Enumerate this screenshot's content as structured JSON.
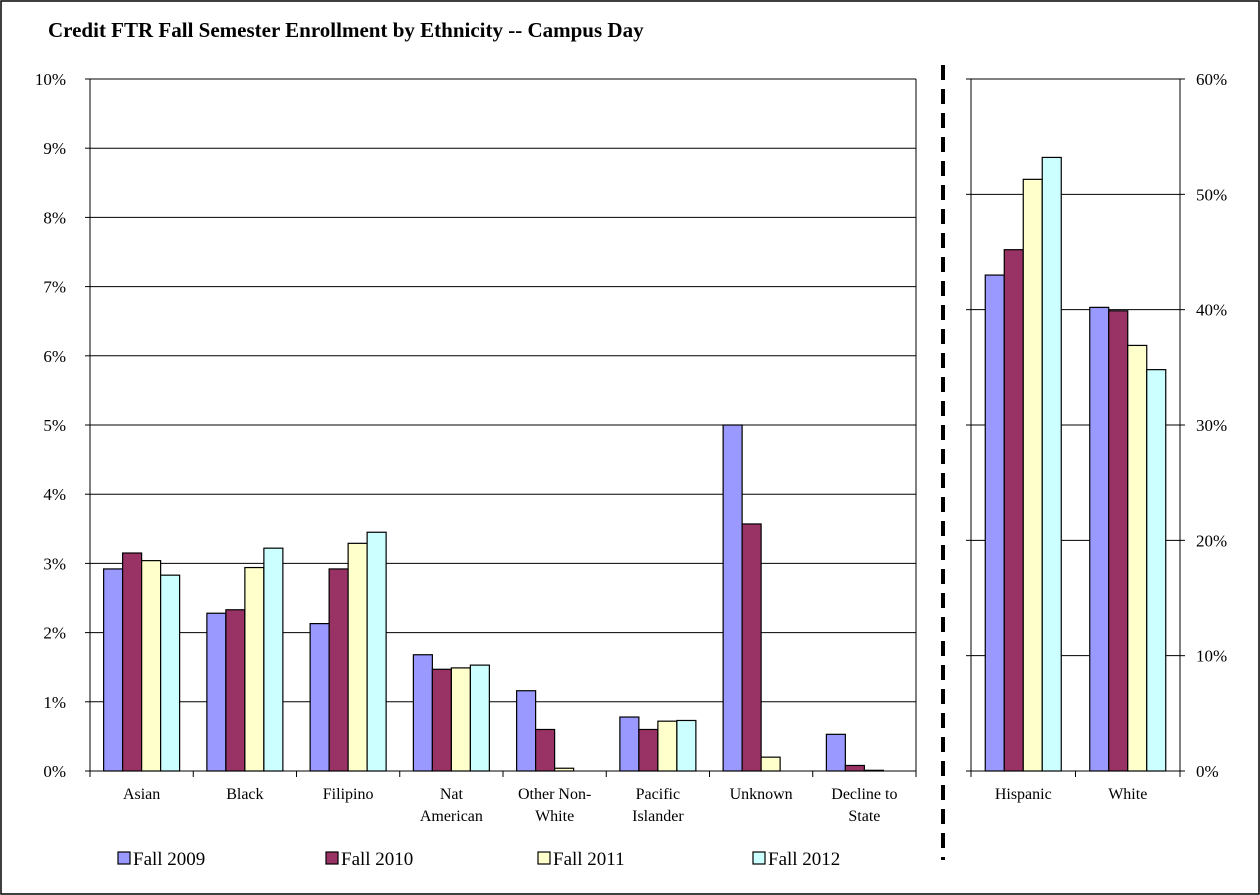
{
  "chart_data": [
    {
      "type": "bar",
      "title": "Credit FTR Fall Semester Enrollment by Ethnicity -- Campus Day",
      "ylim": [
        0,
        10
      ],
      "yticks": [
        "0%",
        "1%",
        "2%",
        "3%",
        "4%",
        "5%",
        "6%",
        "7%",
        "8%",
        "9%",
        "10%"
      ],
      "categories": [
        [
          "Asian"
        ],
        [
          "Black"
        ],
        [
          "Filipino"
        ],
        [
          "Nat",
          "American"
        ],
        [
          "Other Non-",
          "White"
        ],
        [
          "Pacific",
          "Islander"
        ],
        [
          "Unknown"
        ],
        [
          "Decline to",
          "State"
        ]
      ],
      "series": [
        {
          "name": "Fall 2009",
          "color": "#9999FF",
          "values": [
            2.92,
            2.28,
            2.13,
            1.68,
            1.16,
            0.78,
            5.0,
            0.53
          ]
        },
        {
          "name": "Fall 2010",
          "color": "#993366",
          "values": [
            3.15,
            2.33,
            2.92,
            1.47,
            0.6,
            0.6,
            3.57,
            0.08
          ]
        },
        {
          "name": "Fall 2011",
          "color": "#FFFFCC",
          "values": [
            3.04,
            2.94,
            3.29,
            1.49,
            0.04,
            0.72,
            0.2,
            0.01
          ]
        },
        {
          "name": "Fall 2012",
          "color": "#CCFFFF",
          "values": [
            2.83,
            3.22,
            3.45,
            1.53,
            0.0,
            0.73,
            0.0,
            0.0
          ]
        }
      ],
      "grid": true,
      "legend": "bottom"
    },
    {
      "type": "bar",
      "ylim": [
        0,
        60
      ],
      "yticks": [
        "0%",
        "10%",
        "20%",
        "30%",
        "40%",
        "50%",
        "60%"
      ],
      "categories": [
        [
          "Hispanic"
        ],
        [
          "White"
        ]
      ],
      "series": [
        {
          "name": "Fall 2009",
          "color": "#9999FF",
          "values": [
            43.0,
            40.2
          ]
        },
        {
          "name": "Fall 2010",
          "color": "#993366",
          "values": [
            45.2,
            39.9
          ]
        },
        {
          "name": "Fall 2011",
          "color": "#FFFFCC",
          "values": [
            51.3,
            36.9
          ]
        },
        {
          "name": "Fall 2012",
          "color": "#CCFFFF",
          "values": [
            53.2,
            34.8
          ]
        }
      ],
      "grid": true
    }
  ]
}
